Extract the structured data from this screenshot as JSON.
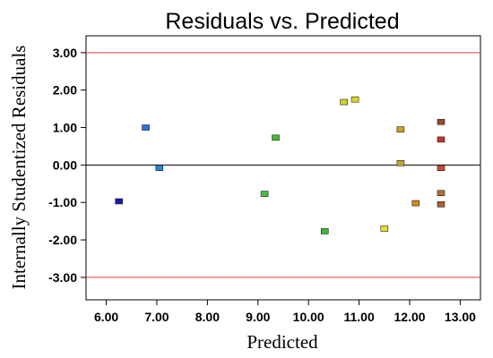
{
  "chart_data": {
    "type": "scatter",
    "title": "Residuals vs. Predicted",
    "xlabel": "Predicted",
    "ylabel": "Internally Studentized Residuals",
    "xlim": [
      5.6,
      13.4
    ],
    "ylim": [
      -3.6,
      3.45
    ],
    "xticks": [
      6.0,
      7.0,
      8.0,
      9.0,
      10.0,
      11.0,
      12.0,
      13.0
    ],
    "xtick_labels": [
      "6.00",
      "7.00",
      "8.00",
      "9.00",
      "10.00",
      "11.00",
      "12.00",
      "13.00"
    ],
    "yticks": [
      -3.0,
      -2.0,
      -1.0,
      0.0,
      1.0,
      2.0,
      3.0
    ],
    "ytick_labels": [
      "-3.00",
      "-2.00",
      "-1.00",
      "0.00",
      "1.00",
      "2.00",
      "3.00"
    ],
    "reference_lines": [
      {
        "y": 3.0,
        "color": "#e04040"
      },
      {
        "y": -3.0,
        "color": "#e04040"
      },
      {
        "y": 0.0,
        "color": "#000000"
      }
    ],
    "grid": false,
    "points": [
      {
        "x": 6.25,
        "y": -0.97,
        "color": "#1a1aa8"
      },
      {
        "x": 6.78,
        "y": 1.0,
        "color": "#2f6fd8"
      },
      {
        "x": 7.05,
        "y": -0.08,
        "color": "#2f7fe0"
      },
      {
        "x": 9.13,
        "y": -0.77,
        "color": "#48c048"
      },
      {
        "x": 9.35,
        "y": 0.73,
        "color": "#4cb832"
      },
      {
        "x": 10.32,
        "y": -1.77,
        "color": "#38b838"
      },
      {
        "x": 10.7,
        "y": 1.68,
        "color": "#c8d820"
      },
      {
        "x": 10.92,
        "y": 1.75,
        "color": "#d8d820"
      },
      {
        "x": 11.5,
        "y": -1.7,
        "color": "#e8e020"
      },
      {
        "x": 11.82,
        "y": 0.95,
        "color": "#c8a020"
      },
      {
        "x": 11.82,
        "y": 0.05,
        "color": "#c8a030"
      },
      {
        "x": 12.12,
        "y": -1.02,
        "color": "#d08a20"
      },
      {
        "x": 12.62,
        "y": 1.15,
        "color": "#9a4a2a"
      },
      {
        "x": 12.62,
        "y": 0.68,
        "color": "#c83030"
      },
      {
        "x": 12.62,
        "y": -0.08,
        "color": "#c84a30"
      },
      {
        "x": 12.62,
        "y": -0.75,
        "color": "#b07030"
      },
      {
        "x": 12.62,
        "y": -1.05,
        "color": "#a86030"
      }
    ]
  }
}
